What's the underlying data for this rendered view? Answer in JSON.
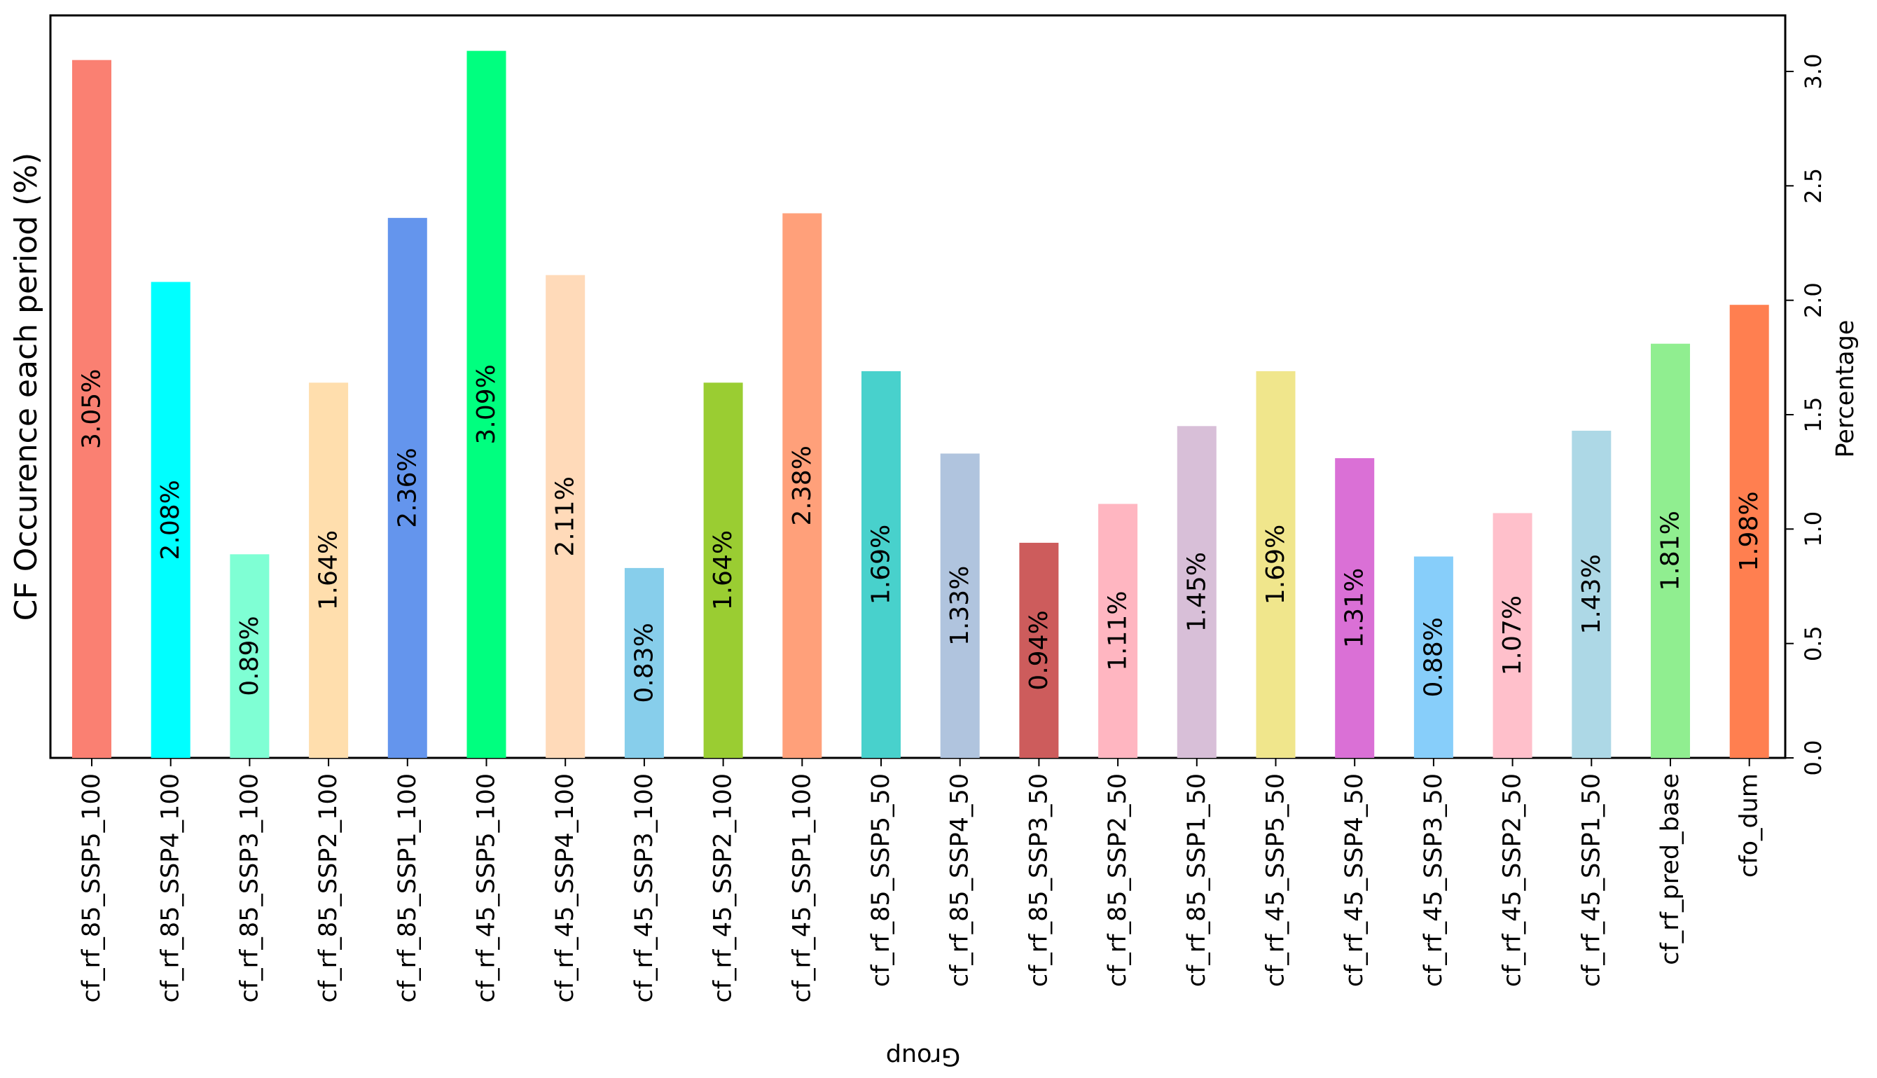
{
  "chart_data": {
    "type": "bar",
    "ylabel": "CF Occurence each period (%)",
    "ylabel_right": "Percentage",
    "xlabel": "Group",
    "ylim": [
      0,
      3.25
    ],
    "yticks": [
      "0.0",
      "0.5",
      "1.0",
      "1.5",
      "2.0",
      "2.5",
      "3.0"
    ],
    "ytick_values": [
      0,
      0.5,
      1.0,
      1.5,
      2.0,
      2.5,
      3.0
    ],
    "grid": false,
    "categories": [
      "cf_rf_85_SSP5_100",
      "cf_rf_85_SSP4_100",
      "cf_rf_85_SSP3_100",
      "cf_rf_85_SSP2_100",
      "cf_rf_85_SSP1_100",
      "cf_rf_45_SSP5_100",
      "cf_rf_45_SSP4_100",
      "cf_rf_45_SSP3_100",
      "cf_rf_45_SSP2_100",
      "cf_rf_45_SSP1_100",
      "cf_rf_85_SSP5_50",
      "cf_rf_85_SSP4_50",
      "cf_rf_85_SSP3_50",
      "cf_rf_85_SSP2_50",
      "cf_rf_85_SSP1_50",
      "cf_rf_45_SSP5_50",
      "cf_rf_45_SSP4_50",
      "cf_rf_45_SSP3_50",
      "cf_rf_45_SSP2_50",
      "cf_rf_45_SSP1_50",
      "cf_rf_pred_base",
      "cfo_dum"
    ],
    "values": [
      3.05,
      2.08,
      0.89,
      1.64,
      2.36,
      3.09,
      2.11,
      0.83,
      1.64,
      2.38,
      1.69,
      1.33,
      0.94,
      1.11,
      1.45,
      1.69,
      1.31,
      0.88,
      1.07,
      1.43,
      1.81,
      1.98
    ],
    "labels": [
      "3.05%",
      "2.08%",
      "0.89%",
      "1.64%",
      "2.36%",
      "3.09%",
      "2.11%",
      "0.83%",
      "1.64%",
      "2.38%",
      "1.69%",
      "1.33%",
      "0.94%",
      "1.11%",
      "1.45%",
      "1.69%",
      "1.31%",
      "0.88%",
      "1.07%",
      "1.43%",
      "1.81%",
      "1.98%"
    ],
    "colors": [
      "#fa8072",
      "#00ffff",
      "#7fffd4",
      "#ffdead",
      "#6495ed",
      "#00ff7f",
      "#ffdab9",
      "#87ceeb",
      "#9acd32",
      "#ffa07a",
      "#48d1cc",
      "#b0c4de",
      "#cd5c5c",
      "#ffb6c1",
      "#d8bfd8",
      "#f0e68c",
      "#da70d6",
      "#87cefa",
      "#ffc0cb",
      "#add8e6",
      "#90ee90",
      "#ff7f50"
    ]
  }
}
